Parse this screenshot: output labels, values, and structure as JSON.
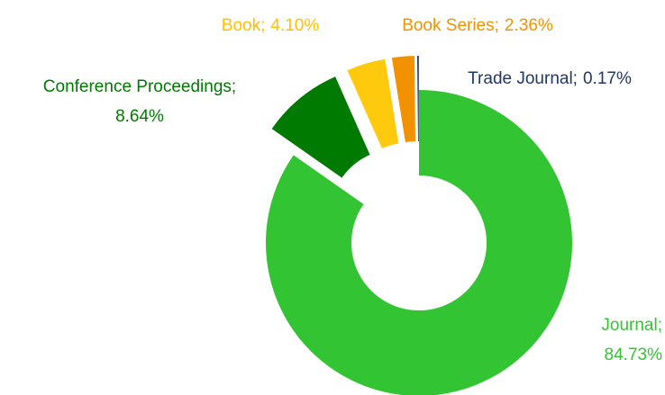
{
  "chart_data": {
    "type": "donut",
    "categories": [
      "Journal;",
      "Conference Proceedings;",
      "Book;",
      "Book Series;",
      "Trade Journal;"
    ],
    "values": [
      84.73,
      8.64,
      4.1,
      2.36,
      0.17
    ],
    "value_labels": [
      "84.73%",
      "8.64%",
      "4.10%",
      "2.36%",
      "0.17%"
    ],
    "colors": [
      "#33c433",
      "#007a00",
      "#ffc90e",
      "#f39200",
      "#1f3864"
    ],
    "label_colors": [
      "#33c433",
      "#007a00",
      "#ffc000",
      "#f39200",
      "#1f3864"
    ]
  }
}
